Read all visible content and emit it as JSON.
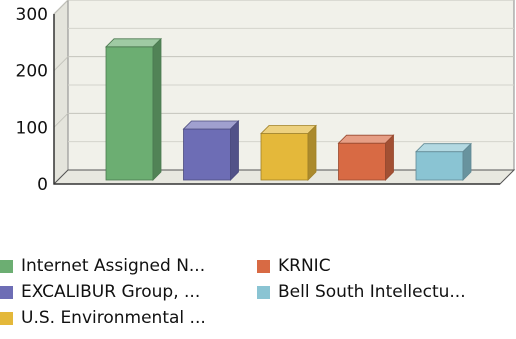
{
  "chart_data": {
    "type": "bar",
    "categories": [
      "Internet Assigned N...",
      "EXCALIBUR Group, ...",
      "U.S. Environmental ...",
      "KRNIC",
      "Bell South Intellectu..."
    ],
    "values": [
      235,
      90,
      82,
      65,
      50
    ],
    "colors": [
      "#6cae72",
      "#6d6db5",
      "#e4b83a",
      "#d86a44",
      "#8ac4d3"
    ],
    "yticks": [
      "0",
      "100",
      "200",
      "300"
    ],
    "ylim": [
      0,
      300
    ],
    "title": "",
    "xlabel": "",
    "ylabel": "",
    "grid": true,
    "legend_position": "bottom"
  }
}
